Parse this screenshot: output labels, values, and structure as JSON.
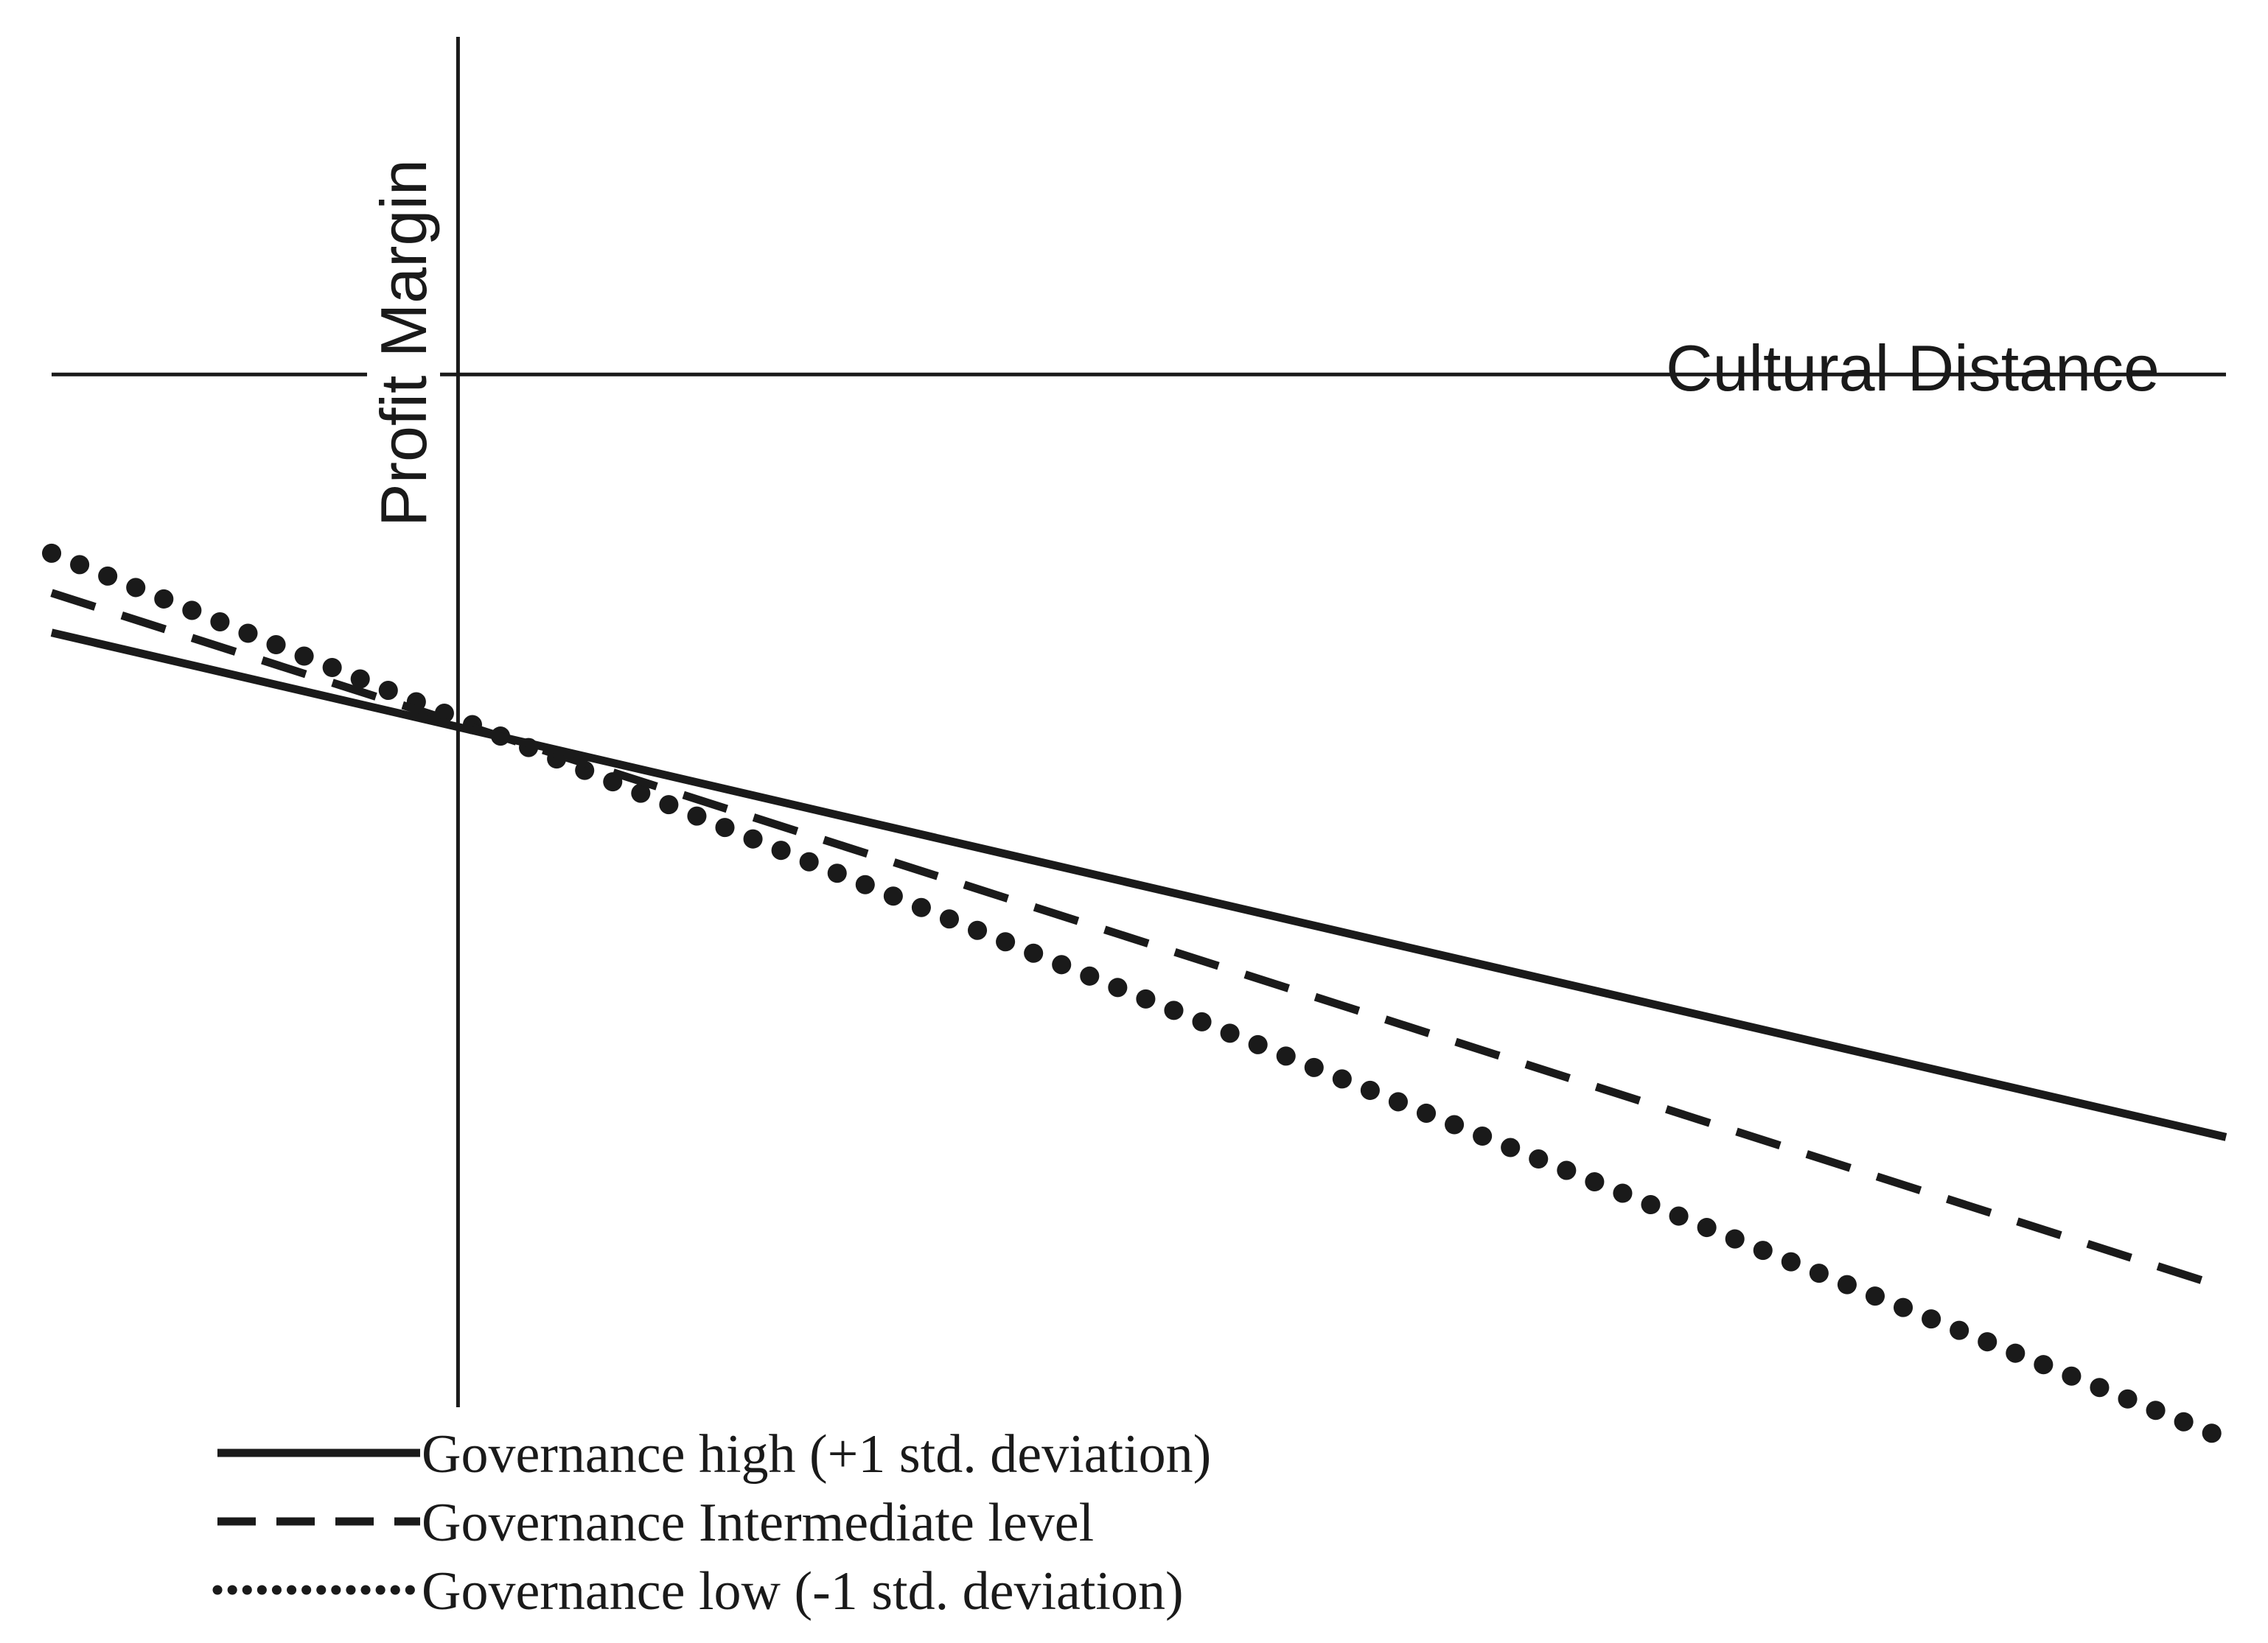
{
  "chart_data": {
    "type": "line",
    "title": "",
    "xlabel": "Cultural Distance",
    "ylabel": "Profit Margin",
    "grid": false,
    "legend_placement": "bottom-left",
    "x": [
      -1,
      4.35
    ],
    "xlim": [
      -1,
      4.35
    ],
    "ylim": [
      -2.6,
      0.85
    ],
    "series": [
      {
        "name": "Governance high (+1 std. deviation)",
        "style": "solid",
        "color": "#1a1a1a",
        "values": [
          -0.65,
          -1.92
        ]
      },
      {
        "name": "Governance Intermediate level",
        "style": "dashed",
        "color": "#1a1a1a",
        "values": [
          -0.55,
          -2.3
        ]
      },
      {
        "name": "Governance low (-1 std. deviation)",
        "style": "dotted",
        "color": "#1a1a1a",
        "values": [
          -0.45,
          -2.68
        ]
      }
    ]
  }
}
